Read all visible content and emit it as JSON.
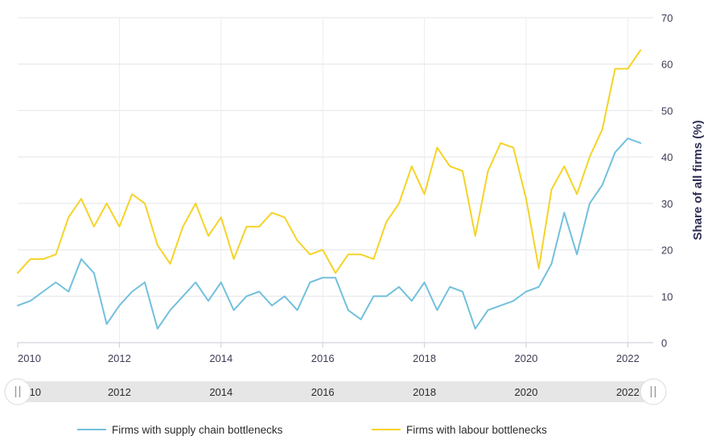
{
  "chart_data": {
    "type": "line",
    "title": "",
    "xlabel": "",
    "ylabel": "Share of all firms (%)",
    "ylim": [
      0,
      70
    ],
    "xlim": [
      2010,
      2022.5
    ],
    "grid": true,
    "yticks": [
      "0",
      "10",
      "20",
      "30",
      "40",
      "50",
      "60",
      "70"
    ],
    "xticks": [
      "2010",
      "2012",
      "2014",
      "2016",
      "2018",
      "2020",
      "2022"
    ],
    "navigator_ticks": [
      "2010",
      "2012",
      "2014",
      "2016",
      "2018",
      "2020",
      "2022"
    ],
    "x": [
      2010.0,
      2010.25,
      2010.5,
      2010.75,
      2011.0,
      2011.25,
      2011.5,
      2011.75,
      2012.0,
      2012.25,
      2012.5,
      2012.75,
      2013.0,
      2013.25,
      2013.5,
      2013.75,
      2014.0,
      2014.25,
      2014.5,
      2014.75,
      2015.0,
      2015.25,
      2015.5,
      2015.75,
      2016.0,
      2016.25,
      2016.5,
      2016.75,
      2017.0,
      2017.25,
      2017.5,
      2017.75,
      2018.0,
      2018.25,
      2018.5,
      2018.75,
      2019.0,
      2019.25,
      2019.5,
      2019.75,
      2020.0,
      2020.25,
      2020.5,
      2020.75,
      2021.0,
      2021.25,
      2021.5,
      2021.75,
      2022.0,
      2022.25
    ],
    "series": [
      {
        "name": "Firms with supply chain bottlenecks",
        "color": "#72c0dc",
        "values": [
          8,
          9,
          11,
          13,
          11,
          18,
          15,
          4,
          8,
          11,
          13,
          3,
          7,
          10,
          13,
          9,
          13,
          7,
          10,
          11,
          8,
          10,
          7,
          13,
          14,
          14,
          7,
          5,
          10,
          10,
          12,
          9,
          13,
          7,
          12,
          11,
          3,
          7,
          8,
          9,
          11,
          12,
          17,
          28,
          19,
          30,
          34,
          41,
          44,
          43
        ]
      },
      {
        "name": "Firms with labour bottlenecks",
        "color": "#f5d327",
        "values": [
          15,
          18,
          18,
          19,
          27,
          31,
          25,
          30,
          25,
          32,
          30,
          21,
          17,
          25,
          30,
          23,
          27,
          18,
          25,
          25,
          28,
          27,
          22,
          19,
          20,
          15,
          19,
          19,
          18,
          26,
          30,
          38,
          32,
          42,
          38,
          37,
          23,
          37,
          43,
          42,
          31,
          16,
          33,
          38,
          32,
          40,
          46,
          59,
          59,
          63
        ]
      }
    ],
    "legend": [
      "Firms with supply chain bottlenecks",
      "Firms with labour bottlenecks"
    ],
    "legend_position": "bottom"
  }
}
